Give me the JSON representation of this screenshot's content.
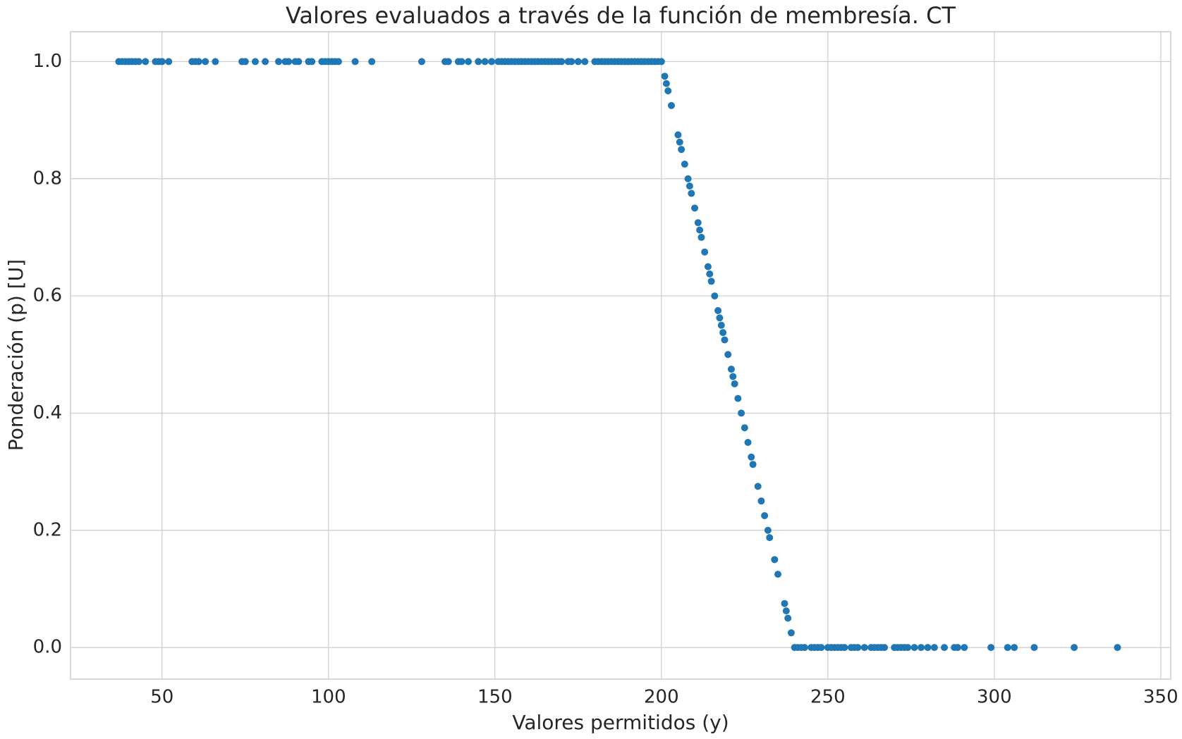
{
  "chart_data": {
    "type": "scatter",
    "title": "Valores evaluados a través de la función de membresía. CT",
    "x_label": "Valores permitidos (y)",
    "y_label": "Ponderación (p) [U]",
    "color": "#1f77b4",
    "grid": true,
    "xlim": [
      22.5,
      353
    ],
    "ylim": [
      -0.054,
      1.051
    ],
    "xticks": [
      50,
      100,
      150,
      200,
      250,
      300,
      350
    ],
    "yticks": [
      {
        "value": 0,
        "label": "0.0"
      },
      {
        "value": 0.2,
        "label": "0.2"
      },
      {
        "value": 0.4,
        "label": "0.4"
      },
      {
        "value": 0.6,
        "label": "0.6"
      },
      {
        "value": 0.8,
        "label": "0.8"
      },
      {
        "value": 1,
        "label": "1.0"
      }
    ],
    "x": [
      37,
      38,
      39,
      40,
      41,
      42,
      43,
      45,
      48,
      49,
      50,
      52,
      59,
      60,
      61,
      63,
      66,
      74,
      75,
      78,
      81,
      85,
      87,
      88,
      90,
      91,
      94,
      95,
      98,
      99,
      100,
      101,
      102,
      103,
      108,
      113,
      128,
      135,
      136,
      139,
      140,
      142,
      145,
      147,
      149,
      151,
      152,
      153,
      154,
      155,
      156,
      157,
      158,
      159,
      160,
      161,
      162,
      163,
      164,
      165,
      166,
      167,
      168,
      169,
      170,
      172,
      173,
      175,
      177,
      180,
      181,
      182,
      183,
      184,
      185,
      186,
      187,
      188,
      189,
      190,
      191,
      192,
      193,
      194,
      195,
      196,
      197,
      198,
      199,
      200,
      201,
      201.5,
      202,
      203,
      205,
      205.5,
      206,
      207,
      208,
      208.5,
      209,
      210,
      211,
      211.5,
      212,
      213,
      214,
      214.5,
      215,
      216,
      217,
      217.5,
      218,
      218.5,
      219,
      220,
      221,
      221.5,
      222,
      223,
      224,
      225,
      226,
      227,
      227.5,
      229,
      230,
      231,
      232,
      232.5,
      234,
      235,
      237,
      237.5,
      238,
      239,
      240,
      241,
      242,
      243,
      245,
      246,
      247,
      248,
      250,
      251,
      252,
      253,
      254,
      255,
      257,
      258,
      259,
      261,
      263,
      264,
      265,
      266,
      267,
      270,
      271,
      272,
      273,
      274,
      276,
      278,
      280,
      282,
      285,
      288,
      289,
      291,
      299,
      304,
      306,
      312,
      324,
      337
    ],
    "values": [
      1,
      1,
      1,
      1,
      1,
      1,
      1,
      1,
      1,
      1,
      1,
      1,
      1,
      1,
      1,
      1,
      1,
      1,
      1,
      1,
      1,
      1,
      1,
      1,
      1,
      1,
      1,
      1,
      1,
      1,
      1,
      1,
      1,
      1,
      1,
      1,
      1,
      1,
      1,
      1,
      1,
      1,
      1,
      1,
      1,
      1,
      1,
      1,
      1,
      1,
      1,
      1,
      1,
      1,
      1,
      1,
      1,
      1,
      1,
      1,
      1,
      1,
      1,
      1,
      1,
      1,
      1,
      1,
      1,
      1,
      1,
      1,
      1,
      1,
      1,
      1,
      1,
      1,
      1,
      1,
      1,
      1,
      1,
      1,
      1,
      1,
      1,
      1,
      1,
      1,
      0.975,
      0.9625,
      0.95,
      0.925,
      0.875,
      0.8625,
      0.85,
      0.825,
      0.8,
      0.7875,
      0.775,
      0.75,
      0.725,
      0.7125,
      0.7,
      0.675,
      0.65,
      0.6375,
      0.625,
      0.6,
      0.575,
      0.5625,
      0.55,
      0.5375,
      0.525,
      0.5,
      0.475,
      0.4625,
      0.45,
      0.425,
      0.4,
      0.375,
      0.35,
      0.325,
      0.3125,
      0.275,
      0.25,
      0.225,
      0.2,
      0.1875,
      0.15,
      0.125,
      0.075,
      0.0625,
      0.05,
      0.025,
      0,
      0,
      0,
      0,
      0,
      0,
      0,
      0,
      0,
      0,
      0,
      0,
      0,
      0,
      0,
      0,
      0,
      0,
      0,
      0,
      0,
      0,
      0,
      0,
      0,
      0,
      0,
      0,
      0,
      0,
      0,
      0,
      0,
      0,
      0,
      0,
      0,
      0,
      0,
      0,
      0,
      0
    ]
  }
}
